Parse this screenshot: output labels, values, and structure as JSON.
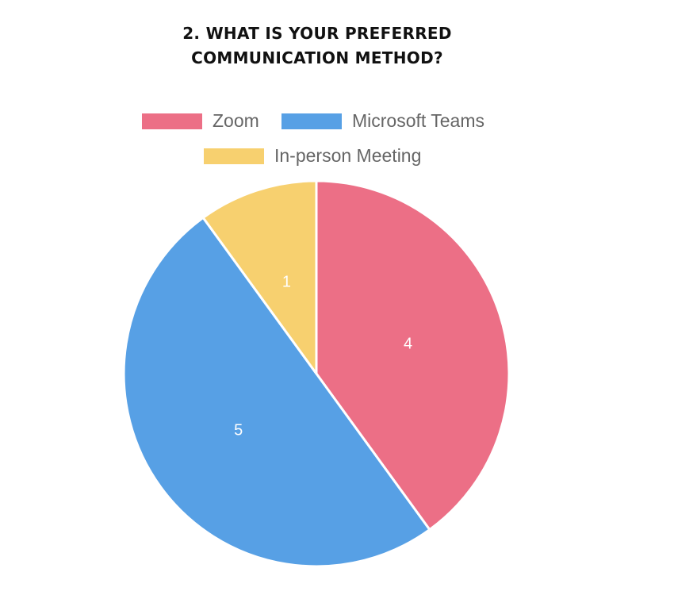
{
  "chart_data": {
    "type": "pie",
    "title_lines": [
      "2. WHAT IS YOUR PREFERRED",
      "COMMUNICATION METHOD?"
    ],
    "categories": [
      "Zoom",
      "Microsoft Teams",
      "In-person Meeting"
    ],
    "values": [
      4,
      5,
      1
    ],
    "value_labels": [
      "4",
      "5",
      "1"
    ],
    "colors": [
      "#ec6f86",
      "#57a0e5",
      "#f7d06f"
    ],
    "legend_position": "top",
    "slice_border_color": "#ffffff",
    "label_color": "#ffffff"
  }
}
